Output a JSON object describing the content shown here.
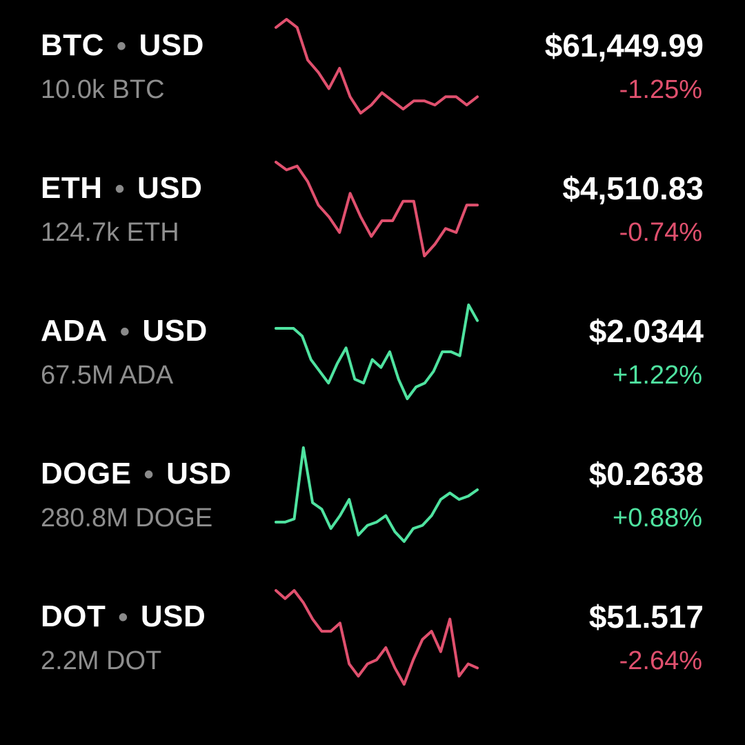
{
  "colors": {
    "background": "#000000",
    "negative": "#e0506e",
    "positive": "#4fe3a0",
    "secondary_text": "#8e8e8e"
  },
  "assets": [
    {
      "base": "BTC",
      "separator": "•",
      "quote": "USD",
      "volume": "10.0k BTC",
      "price": "$61,449.99",
      "change": "-1.25%",
      "direction": "down",
      "sparkline": [
        94,
        96,
        94,
        86,
        83,
        79,
        84,
        77,
        73,
        75,
        78,
        76,
        74,
        76,
        76,
        75,
        77,
        77,
        75,
        77
      ]
    },
    {
      "base": "ETH",
      "separator": "•",
      "quote": "USD",
      "volume": "124.7k ETH",
      "price": "$4,510.83",
      "change": "-0.74%",
      "direction": "down",
      "sparkline": [
        97,
        95,
        96,
        92,
        86,
        83,
        79,
        89,
        83,
        78,
        82,
        82,
        87,
        87,
        73,
        76,
        80,
        79,
        86,
        86
      ]
    },
    {
      "base": "ADA",
      "separator": "•",
      "quote": "USD",
      "volume": "67.5M ADA",
      "price": "$2.0344",
      "change": "+1.22%",
      "direction": "up",
      "sparkline": [
        91,
        91,
        91,
        89,
        83,
        80,
        77,
        82,
        86,
        78,
        77,
        83,
        81,
        85,
        78,
        73,
        76,
        77,
        80,
        85,
        85,
        84,
        97,
        93
      ]
    },
    {
      "base": "DOGE",
      "separator": "•",
      "quote": "USD",
      "volume": "280.8M DOGE",
      "price": "$0.2638",
      "change": "+0.88%",
      "direction": "up",
      "sparkline": [
        74,
        74,
        75,
        97,
        80,
        78,
        72,
        76,
        81,
        70,
        73,
        74,
        76,
        71,
        68,
        72,
        73,
        76,
        81,
        83,
        81,
        82,
        84
      ]
    },
    {
      "base": "DOT",
      "separator": "•",
      "quote": "USD",
      "volume": "2.2M DOT",
      "price": "$51.517",
      "change": "-2.64%",
      "direction": "down",
      "sparkline": [
        97,
        95,
        97,
        94,
        90,
        87,
        87,
        89,
        79,
        76,
        79,
        80,
        83,
        78,
        74,
        80,
        85,
        87,
        82,
        90,
        76,
        79,
        78
      ]
    }
  ]
}
